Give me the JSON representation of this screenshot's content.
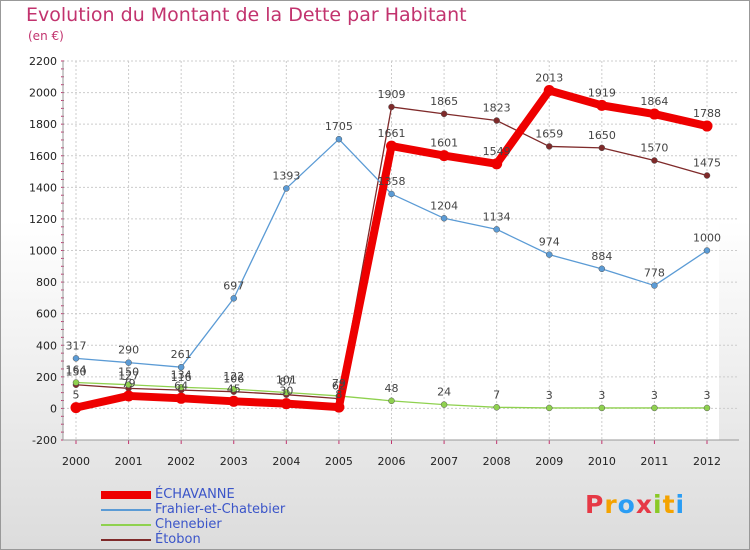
{
  "chart_data": {
    "type": "line",
    "title": "Evolution du Montant de la Dette par Habitant",
    "subtitle": "(en €)",
    "x": [
      "2000",
      "2001",
      "2002",
      "2003",
      "2004",
      "2005",
      "2006",
      "2007",
      "2008",
      "2009",
      "2010",
      "2011",
      "2012"
    ],
    "ylim": [
      -200,
      2200
    ],
    "yticks": [
      -200,
      0,
      200,
      400,
      600,
      800,
      1000,
      1200,
      1400,
      1600,
      1800,
      2000,
      2200
    ],
    "grid": true,
    "legend_position": "bottom-left",
    "series": [
      {
        "name": "ÉCHAVANNE",
        "color": "#ee0000",
        "values": [
          5,
          79,
          64,
          45,
          30,
          8,
          1661,
          1601,
          1549,
          2013,
          1919,
          1864,
          1788
        ],
        "labels": [
          "5",
          "79",
          "64",
          "45",
          "30",
          "8",
          "1661",
          "1601",
          "1549",
          "2013",
          "1919",
          "1864",
          "1788"
        ]
      },
      {
        "name": "Frahier-et-Chatebier",
        "color": "#5b9bd5",
        "values": [
          317,
          290,
          261,
          697,
          1393,
          1705,
          1358,
          1204,
          1134,
          974,
          884,
          778,
          1000
        ],
        "labels": [
          "317",
          "290",
          "261",
          "697",
          "1393",
          "1705",
          "1358",
          "1204",
          "1134",
          "974",
          "884",
          "778",
          "1000"
        ]
      },
      {
        "name": "Chenebier",
        "color": "#8fd14f",
        "values": [
          164,
          150,
          134,
          122,
          101,
          79,
          48,
          24,
          7,
          3,
          3,
          3,
          3
        ],
        "labels": [
          "164",
          "150",
          "134",
          "122",
          "101",
          "79",
          "48",
          "24",
          "7",
          "3",
          "3",
          "3",
          "3"
        ]
      },
      {
        "name": "Étobon",
        "color": "#7f2a2a",
        "values": [
          150,
          127,
          116,
          106,
          87,
          62,
          1909,
          1865,
          1823,
          1659,
          1650,
          1570,
          1475
        ],
        "labels": [
          "150",
          "127",
          "116",
          "106",
          "87",
          "62",
          "1909",
          "1865",
          "1823",
          "1659",
          "1650",
          "1570",
          "1475"
        ]
      }
    ]
  },
  "logo": {
    "letters": [
      "P",
      "r",
      "o",
      "x",
      "i",
      "t",
      "i"
    ],
    "colors": [
      "#e63946",
      "#f4a300",
      "#2a9df4",
      "#e63946",
      "#8ac926",
      "#f4a300",
      "#2a9df4"
    ]
  }
}
